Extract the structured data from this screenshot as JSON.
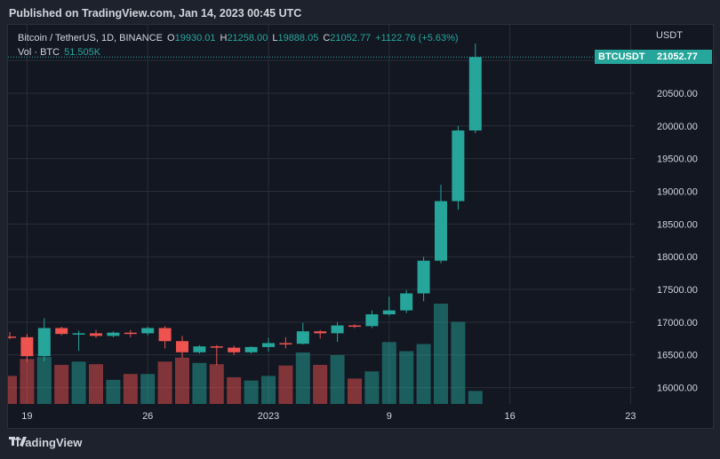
{
  "header": {
    "published": "Published on TradingView.com, Jan 14, 2023 00:45 UTC"
  },
  "legend": {
    "symbol": "Bitcoin / TetherUS, 1D, BINANCE",
    "o_label": "O",
    "o_value": "19930.01",
    "h_label": "H",
    "h_value": "21258.00",
    "l_label": "L",
    "l_value": "19888.05",
    "c_label": "C",
    "c_value": "21052.77",
    "change": "+1122.76 (+5.63%)",
    "vol_label": "Vol · BTC",
    "vol_value": "51.505K"
  },
  "price_axis": {
    "currency": "USDT",
    "symbol_tag": "BTCUSDT",
    "last_price_tag": "21052.77"
  },
  "footer": {
    "brand": "TradingView"
  },
  "colors": {
    "up": "#26a69a",
    "down": "#ef5350",
    "background": "#131722",
    "grid": "#2a2e39"
  },
  "chart_data": {
    "type": "candlestick",
    "symbol": "BTCUSDT",
    "interval": "1D",
    "ylim": [
      15750,
      21300
    ],
    "y_ticks": [
      16000,
      16500,
      17000,
      17500,
      18000,
      18500,
      19000,
      19500,
      20000,
      20500,
      21000
    ],
    "y_tick_labels": [
      "16000.00",
      "16500.00",
      "17000.00",
      "17500.00",
      "18000.00",
      "18500.00",
      "19000.00",
      "19500.00",
      "20000.00",
      "20500.00",
      "21000.00"
    ],
    "x_labels": [
      {
        "label": "19",
        "date": "2022-12-19"
      },
      {
        "label": "26",
        "date": "2022-12-26"
      },
      {
        "label": "2023",
        "date": "2023-01-02"
      },
      {
        "label": "9",
        "date": "2023-01-09"
      },
      {
        "label": "16",
        "date": "2023-01-16"
      },
      {
        "label": "23",
        "date": "2023-01-23"
      }
    ],
    "last_price": 21052.77,
    "candles": [
      {
        "date": "2022-12-18",
        "o": 16780,
        "h": 16850,
        "l": 16740,
        "c": 16770,
        "v": 0.43
      },
      {
        "date": "2022-12-19",
        "o": 16770,
        "h": 16820,
        "l": 16390,
        "c": 16480,
        "v": 0.69
      },
      {
        "date": "2022-12-20",
        "o": 16480,
        "h": 17060,
        "l": 16400,
        "c": 16910,
        "v": 0.72
      },
      {
        "date": "2022-12-21",
        "o": 16910,
        "h": 16930,
        "l": 16800,
        "c": 16820,
        "v": 0.6
      },
      {
        "date": "2022-12-22",
        "o": 16820,
        "h": 16870,
        "l": 16560,
        "c": 16830,
        "v": 0.65
      },
      {
        "date": "2022-12-23",
        "o": 16830,
        "h": 16880,
        "l": 16760,
        "c": 16790,
        "v": 0.61
      },
      {
        "date": "2022-12-24",
        "o": 16790,
        "h": 16860,
        "l": 16770,
        "c": 16840,
        "v": 0.37
      },
      {
        "date": "2022-12-25",
        "o": 16840,
        "h": 16880,
        "l": 16770,
        "c": 16830,
        "v": 0.46
      },
      {
        "date": "2022-12-26",
        "o": 16830,
        "h": 16930,
        "l": 16800,
        "c": 16910,
        "v": 0.46
      },
      {
        "date": "2022-12-27",
        "o": 16910,
        "h": 16940,
        "l": 16600,
        "c": 16710,
        "v": 0.65
      },
      {
        "date": "2022-12-28",
        "o": 16710,
        "h": 16790,
        "l": 16450,
        "c": 16540,
        "v": 0.71
      },
      {
        "date": "2022-12-29",
        "o": 16540,
        "h": 16650,
        "l": 16520,
        "c": 16630,
        "v": 0.63
      },
      {
        "date": "2022-12-30",
        "o": 16630,
        "h": 16650,
        "l": 16340,
        "c": 16610,
        "v": 0.61
      },
      {
        "date": "2022-12-31",
        "o": 16610,
        "h": 16640,
        "l": 16500,
        "c": 16540,
        "v": 0.41
      },
      {
        "date": "2023-01-01",
        "o": 16540,
        "h": 16630,
        "l": 16520,
        "c": 16620,
        "v": 0.36
      },
      {
        "date": "2023-01-02",
        "o": 16620,
        "h": 16760,
        "l": 16550,
        "c": 16680,
        "v": 0.43
      },
      {
        "date": "2023-01-03",
        "o": 16680,
        "h": 16770,
        "l": 16600,
        "c": 16670,
        "v": 0.59
      },
      {
        "date": "2023-01-04",
        "o": 16670,
        "h": 16990,
        "l": 16660,
        "c": 16860,
        "v": 0.79
      },
      {
        "date": "2023-01-05",
        "o": 16860,
        "h": 16880,
        "l": 16750,
        "c": 16830,
        "v": 0.6
      },
      {
        "date": "2023-01-06",
        "o": 16830,
        "h": 17000,
        "l": 16700,
        "c": 16950,
        "v": 0.75
      },
      {
        "date": "2023-01-07",
        "o": 16950,
        "h": 16970,
        "l": 16910,
        "c": 16940,
        "v": 0.39
      },
      {
        "date": "2023-01-08",
        "o": 16940,
        "h": 17180,
        "l": 16910,
        "c": 17120,
        "v": 0.5
      },
      {
        "date": "2023-01-09",
        "o": 17120,
        "h": 17390,
        "l": 17100,
        "c": 17180,
        "v": 0.95
      },
      {
        "date": "2023-01-10",
        "o": 17180,
        "h": 17490,
        "l": 17140,
        "c": 17440,
        "v": 0.81
      },
      {
        "date": "2023-01-11",
        "o": 17440,
        "h": 18000,
        "l": 17320,
        "c": 17940,
        "v": 0.92
      },
      {
        "date": "2023-01-12",
        "o": 17940,
        "h": 19100,
        "l": 17900,
        "c": 18850,
        "v": 1.54
      },
      {
        "date": "2023-01-13",
        "o": 18850,
        "h": 20000,
        "l": 18720,
        "c": 19930,
        "v": 1.26
      },
      {
        "date": "2023-01-14",
        "o": 19930.01,
        "h": 21258.0,
        "l": 19888.05,
        "c": 21052.77,
        "v": 0.2
      }
    ]
  }
}
